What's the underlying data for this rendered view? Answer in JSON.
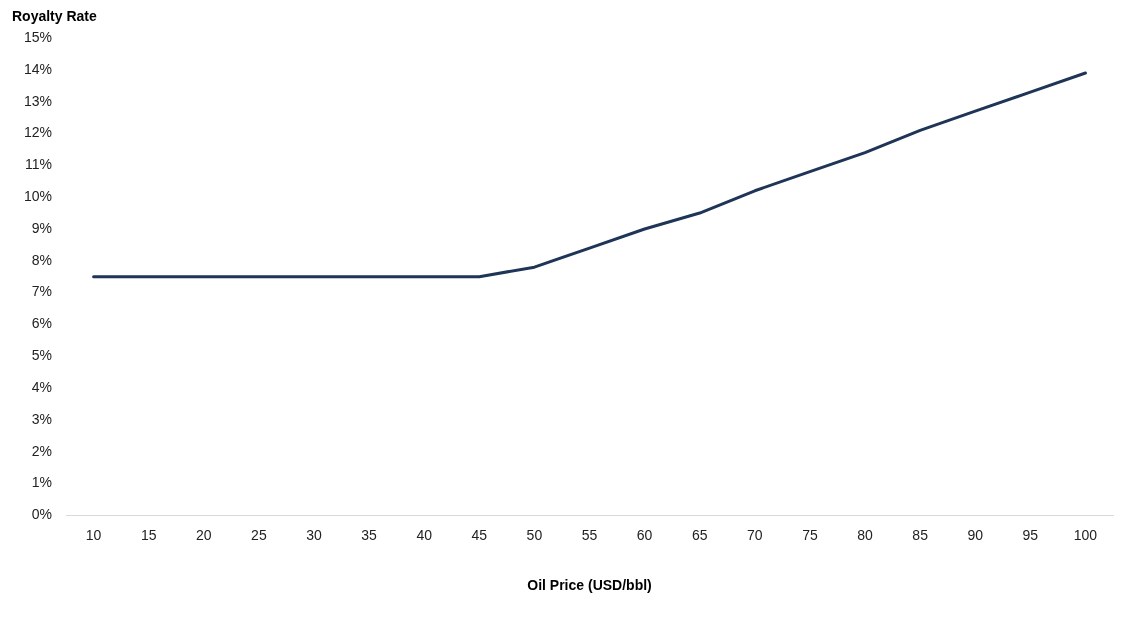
{
  "chart_data": {
    "type": "line",
    "ylabel": "Royalty Rate",
    "xlabel": "Oil Price (USD/bbl)",
    "categories": [
      "10",
      "15",
      "20",
      "25",
      "30",
      "35",
      "40",
      "45",
      "50",
      "55",
      "60",
      "65",
      "70",
      "75",
      "80",
      "85",
      "90",
      "95",
      "100"
    ],
    "series": [
      {
        "color": "#1f3557",
        "values": [
          7.5,
          7.5,
          7.5,
          7.5,
          7.5,
          7.5,
          7.5,
          7.5,
          7.8,
          8.4,
          9.0,
          9.5,
          10.2,
          10.8,
          11.4,
          12.1,
          12.7,
          13.3,
          13.9
        ]
      }
    ],
    "ylim": [
      0,
      15
    ],
    "yticks": [
      {
        "value": 0,
        "label": "0%"
      },
      {
        "value": 1,
        "label": "1%"
      },
      {
        "value": 2,
        "label": "2%"
      },
      {
        "value": 3,
        "label": "3%"
      },
      {
        "value": 4,
        "label": "4%"
      },
      {
        "value": 5,
        "label": "5%"
      },
      {
        "value": 6,
        "label": "6%"
      },
      {
        "value": 7,
        "label": "7%"
      },
      {
        "value": 8,
        "label": "8%"
      },
      {
        "value": 9,
        "label": "9%"
      },
      {
        "value": 10,
        "label": "10%"
      },
      {
        "value": 11,
        "label": "11%"
      },
      {
        "value": 12,
        "label": "12%"
      },
      {
        "value": 13,
        "label": "13%"
      },
      {
        "value": 14,
        "label": "14%"
      },
      {
        "value": 15,
        "label": "15%"
      }
    ],
    "grid": false,
    "legend": false,
    "marker": "none",
    "line_style": "solid"
  }
}
